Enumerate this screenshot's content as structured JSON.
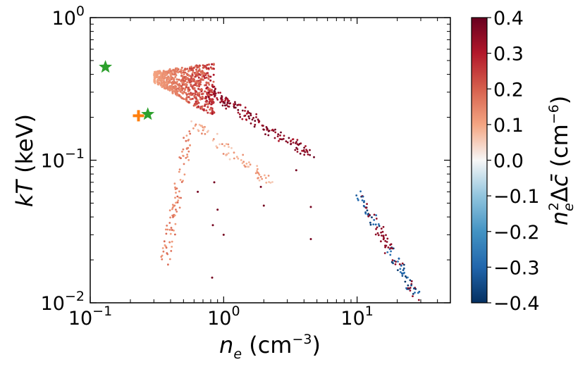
{
  "chart_data": {
    "type": "scatter",
    "title": "",
    "x_scale": "log",
    "y_scale": "log",
    "xlim": [
      0.1,
      50
    ],
    "ylim": [
      0.01,
      1.0
    ],
    "xlabel": {
      "var": "n",
      "sub": "e",
      "unit_open": " (cm",
      "unit_exp": "−3",
      "unit_close": ")"
    },
    "ylabel": {
      "pre": "k",
      "var": "T",
      "unit": " (keV)"
    },
    "x_ticks": [
      {
        "value": 0.1,
        "base": "10",
        "exp": "−1"
      },
      {
        "value": 1,
        "base": "10",
        "exp": "0"
      },
      {
        "value": 10,
        "base": "10",
        "exp": "1"
      }
    ],
    "y_ticks": [
      {
        "value": 0.01,
        "base": "10",
        "exp": "−2"
      },
      {
        "value": 0.1,
        "base": "10",
        "exp": "−1"
      },
      {
        "value": 1,
        "base": "10",
        "exp": "0"
      }
    ],
    "colorbar": {
      "vmin": -0.4,
      "vmax": 0.4,
      "cmap": "RdBu_r",
      "ticks": [
        "0.4",
        "0.3",
        "0.2",
        "0.1",
        "0.0",
        "−0.1",
        "−0.2",
        "−0.3",
        "−0.4"
      ],
      "tick_values": [
        0.4,
        0.3,
        0.2,
        0.1,
        0.0,
        -0.1,
        -0.2,
        -0.3,
        -0.4
      ],
      "label": {
        "n": "n",
        "sub": "e",
        "sup": "2",
        "delta": "Δ",
        "c": "c̄",
        "unit_open": " (cm",
        "unit_exp": "−6",
        "unit_close": ")"
      }
    },
    "colors": {
      "star": "#2ca02c",
      "plus": "#ff7f0e"
    },
    "special_markers": [
      {
        "name": "star-marker-1",
        "shape": "star",
        "x": 0.13,
        "y": 0.45
      },
      {
        "name": "star-marker-2",
        "shape": "star",
        "x": 0.27,
        "y": 0.21
      },
      {
        "name": "plus-marker",
        "shape": "plus",
        "x": 0.23,
        "y": 0.205
      }
    ],
    "series": [
      {
        "name": "hot-cluster-band",
        "x_range": [
          0.3,
          0.9
        ],
        "y_range": [
          0.2,
          0.5
        ],
        "count": 700,
        "c_range": [
          0.05,
          0.3
        ]
      },
      {
        "name": "hot-tail",
        "x_start": 0.8,
        "x_end": 4.5,
        "y_start": 0.3,
        "y_end": 0.11,
        "count": 160,
        "c_range": [
          0.3,
          0.4
        ]
      },
      {
        "name": "left-arc",
        "x_start": 0.55,
        "x_end": 0.36,
        "y_start": 0.16,
        "y_end": 0.018,
        "count": 90,
        "c_range": [
          0.1,
          0.2
        ]
      },
      {
        "name": "mid-arc",
        "x_start": 0.6,
        "x_end": 2.2,
        "y_start": 0.18,
        "y_end": 0.07,
        "count": 70,
        "c_range": [
          0.05,
          0.15
        ]
      },
      {
        "name": "dense-branch",
        "x_start": 10,
        "x_end": 28,
        "y_start": 0.06,
        "y_end": 0.011,
        "count": 120,
        "c_mix": [
          -0.4,
          0.35
        ]
      },
      {
        "name": "scattered",
        "points": [
          [
            0.85,
            0.07
          ],
          [
            0.83,
            0.035
          ],
          [
            1.0,
            0.03
          ],
          [
            0.82,
            0.015
          ],
          [
            2.0,
            0.048
          ],
          [
            4.5,
            0.047
          ],
          [
            4.5,
            0.028
          ],
          [
            1.9,
            0.065
          ],
          [
            3.5,
            0.085
          ],
          [
            0.64,
            0.06
          ],
          [
            0.9,
            0.045
          ]
        ],
        "c": 0.38
      }
    ]
  }
}
